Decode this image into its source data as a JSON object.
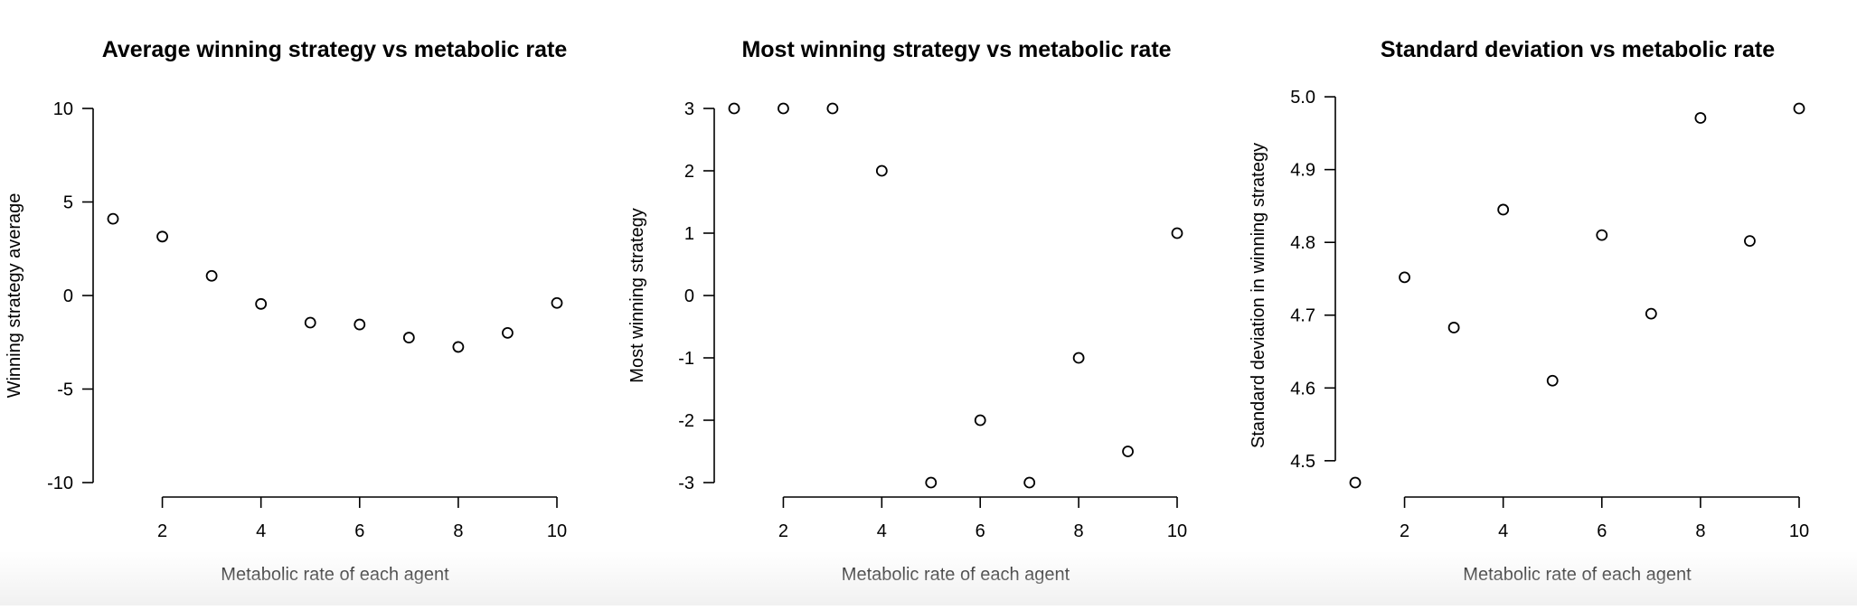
{
  "chart_data": [
    {
      "type": "scatter",
      "title": "Average winning strategy vs metabolic rate",
      "xlabel": "Metabolic rate of each agent",
      "ylabel": "Winning strategy average",
      "x": [
        1,
        2,
        3,
        4,
        5,
        6,
        7,
        8,
        9,
        10
      ],
      "y": [
        4.1,
        3.15,
        1.05,
        -0.45,
        -1.45,
        -1.55,
        -2.25,
        -2.75,
        -2.0,
        -0.4
      ],
      "xlim": [
        1,
        10
      ],
      "ylim": [
        -10,
        10
      ],
      "xticks": [
        2,
        4,
        6,
        8,
        10
      ],
      "yticks": [
        -10,
        -5,
        0,
        5,
        10
      ],
      "ytick_labels": [
        "-10",
        "-5",
        "0",
        "5",
        "10"
      ],
      "grid": false
    },
    {
      "type": "scatter",
      "title": "Most winning strategy vs metabolic rate",
      "xlabel": "Metabolic rate of each agent",
      "ylabel": "Most winning strategy",
      "x": [
        1,
        2,
        3,
        4,
        5,
        6,
        7,
        8,
        9,
        10
      ],
      "y": [
        3,
        3,
        3,
        2,
        -3,
        -2,
        -3,
        -1,
        -2.5,
        1
      ],
      "xlim": [
        1,
        10
      ],
      "ylim": [
        -3,
        3
      ],
      "xticks": [
        2,
        4,
        6,
        8,
        10
      ],
      "yticks": [
        -3,
        -2,
        -1,
        0,
        1,
        2,
        3
      ],
      "ytick_labels": [
        "-3",
        "-2",
        "-1",
        "0",
        "1",
        "2",
        "3"
      ],
      "grid": false
    },
    {
      "type": "scatter",
      "title": "Standard deviation vs metabolic rate",
      "xlabel": "Metabolic rate of each agent",
      "ylabel": "Standard deviation in winning strategy",
      "x": [
        1,
        2,
        3,
        4,
        5,
        6,
        7,
        8,
        9,
        10
      ],
      "y": [
        4.47,
        4.752,
        4.683,
        4.845,
        4.61,
        4.81,
        4.702,
        4.971,
        4.802,
        4.984
      ],
      "xlim": [
        1,
        10
      ],
      "ylim": [
        4.47,
        4.984
      ],
      "xticks": [
        2,
        4,
        6,
        8,
        10
      ],
      "yticks": [
        4.5,
        4.6,
        4.7,
        4.8,
        4.9,
        5.0
      ],
      "ytick_labels": [
        "4.5",
        "4.6",
        "4.7",
        "4.8",
        "4.9",
        "5.0"
      ],
      "grid": false
    }
  ]
}
